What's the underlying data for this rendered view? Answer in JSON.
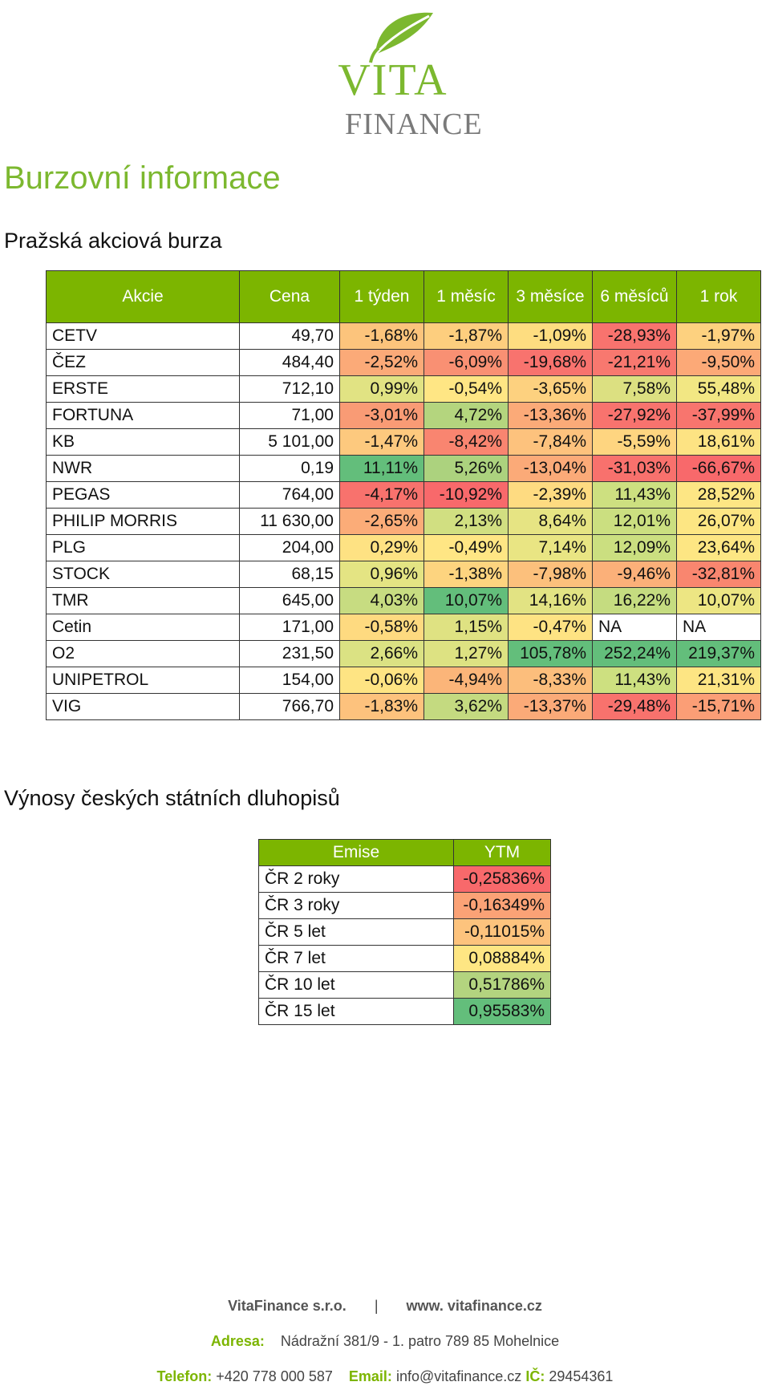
{
  "header": {
    "logo_top": "VITA",
    "logo_bottom": "FINANCE",
    "title": "Burzovní informace",
    "section1": "Pražská akciová burza",
    "section2": "Výnosy českých státních dluhopisů"
  },
  "stocks": {
    "headers": [
      "Akcie",
      "Cena",
      "1 týden",
      "1 měsíc",
      "3 měsíce",
      "6 měsíců",
      "1 rok"
    ],
    "rows": [
      {
        "name": "CETV",
        "price": "49,70",
        "vals": [
          "-1,68%",
          "-1,87%",
          "-1,09%",
          "-28,93%",
          "-1,97%"
        ],
        "colors": [
          "#fcc47c",
          "#fdce7e",
          "#fedd80",
          "#f8736e",
          "#fdd17f"
        ]
      },
      {
        "name": "ČEZ",
        "price": "484,40",
        "vals": [
          "-2,52%",
          "-6,09%",
          "-19,68%",
          "-21,21%",
          "-9,50%"
        ],
        "colors": [
          "#fbaa78",
          "#f99073",
          "#f8736e",
          "#f8786f",
          "#fca977"
        ]
      },
      {
        "name": "ERSTE",
        "price": "712,10",
        "vals": [
          "0,99%",
          "-0,54%",
          "-3,65%",
          "7,58%",
          "55,48%"
        ],
        "colors": [
          "#e1e383",
          "#ffe684",
          "#fdd17f",
          "#dce081",
          "#f2e783"
        ]
      },
      {
        "name": "FORTUNA",
        "price": "71,00",
        "vals": [
          "-3,01%",
          "4,72%",
          "-13,36%",
          "-27,92%",
          "-37,99%"
        ],
        "colors": [
          "#f99b75",
          "#b4d57e",
          "#fbaa78",
          "#f8736e",
          "#f8756e"
        ]
      },
      {
        "name": "KB",
        "price": "5 101,00",
        "vals": [
          "-1,47%",
          "-8,42%",
          "-7,84%",
          "-5,59%",
          "18,61%"
        ],
        "colors": [
          "#fdc97e",
          "#f98570",
          "#fdc27d",
          "#fed580",
          "#fde383"
        ]
      },
      {
        "name": "NWR",
        "price": "0,19",
        "vals": [
          "11,11%",
          "5,26%",
          "-13,04%",
          "-31,03%",
          "-66,67%"
        ],
        "colors": [
          "#63be7b",
          "#acd27e",
          "#fbaa78",
          "#f8716d",
          "#f8696b"
        ]
      },
      {
        "name": "PEGAS",
        "price": "764,00",
        "vals": [
          "-4,17%",
          "-10,92%",
          "-2,39%",
          "11,43%",
          "28,52%"
        ],
        "colors": [
          "#f8726d",
          "#f8696b",
          "#fedb81",
          "#cde080",
          "#fde684"
        ]
      },
      {
        "name": "PHILIP MORRIS",
        "price": "11 630,00",
        "vals": [
          "-2,65%",
          "2,13%",
          "8,64%",
          "12,01%",
          "26,07%"
        ],
        "colors": [
          "#fbac78",
          "#d1df81",
          "#e6e483",
          "#cbdf80",
          "#fde683"
        ]
      },
      {
        "name": "PLG",
        "price": "204,00",
        "vals": [
          "0,29%",
          "-0,49%",
          "7,14%",
          "12,09%",
          "23,64%"
        ],
        "colors": [
          "#fee283",
          "#ffe684",
          "#e9e583",
          "#cbdf80",
          "#fde683"
        ]
      },
      {
        "name": "STOCK",
        "price": "68,15",
        "vals": [
          "0,96%",
          "-1,38%",
          "-7,98%",
          "-9,46%",
          "-32,81%"
        ],
        "colors": [
          "#e4e483",
          "#fdd47f",
          "#fcc07c",
          "#fbb079",
          "#f9866f"
        ]
      },
      {
        "name": "TMR",
        "price": "645,00",
        "vals": [
          "4,03%",
          "10,07%",
          "14,16%",
          "16,22%",
          "10,07%"
        ],
        "colors": [
          "#c7dc81",
          "#63be7b",
          "#e2e383",
          "#c5dc80",
          "#ede683"
        ]
      },
      {
        "name": "Cetin",
        "price": "171,00",
        "vals": [
          "-0,58%",
          "1,15%",
          "-0,47%",
          "NA",
          "NA"
        ],
        "colors": [
          "#feda80",
          "#dfe282",
          "#fee383",
          "#ffffff",
          "#ffffff"
        ]
      },
      {
        "name": "O2",
        "price": "231,50",
        "vals": [
          "2,66%",
          "1,27%",
          "105,78%",
          "252,24%",
          "219,37%"
        ],
        "colors": [
          "#dbe283",
          "#dde282",
          "#63be7b",
          "#63be7b",
          "#63be7b"
        ]
      },
      {
        "name": "UNIPETROL",
        "price": "154,00",
        "vals": [
          "-0,06%",
          "-4,94%",
          "-8,33%",
          "11,43%",
          "21,31%"
        ],
        "colors": [
          "#fee483",
          "#fbb579",
          "#fcbe7c",
          "#cde080",
          "#fde583"
        ]
      },
      {
        "name": "VIG",
        "price": "766,70",
        "vals": [
          "-1,83%",
          "3,62%",
          "-13,37%",
          "-29,48%",
          "-15,71%"
        ],
        "colors": [
          "#fdc27d",
          "#c4da80",
          "#fbaa78",
          "#f8726d",
          "#fb9e76"
        ]
      }
    ]
  },
  "bonds": {
    "headers": [
      "Emise",
      "YTM"
    ],
    "rows": [
      {
        "name": "ČR 2 roky",
        "ytm": "-0,25836%",
        "color": "#f8696b"
      },
      {
        "name": "ČR 3 roky",
        "ytm": "-0,16349%",
        "color": "#fba276"
      },
      {
        "name": "ČR 5 let",
        "ytm": "-0,11015%",
        "color": "#fdc37d"
      },
      {
        "name": "ČR 7 let",
        "ytm": "0,08884%",
        "color": "#fee683"
      },
      {
        "name": "ČR 10 let",
        "ytm": "0,51786%",
        "color": "#b3d47f"
      },
      {
        "name": "ČR 15 let",
        "ytm": "0,95583%",
        "color": "#63be7b"
      }
    ]
  },
  "footer": {
    "company": "VitaFinance s.r.o.",
    "separator": "|",
    "web": "www. vitafinance.cz",
    "address_label": "Adresa:",
    "address": "Nádražní 381/9 - 1. patro 789 85 Mohelnice",
    "phone_label": "Telefon:",
    "phone": "+420 778 000 587",
    "email_label": "Email:",
    "email": "info@vitafinance.cz",
    "ic_label": "IČ:",
    "ic": "29454361"
  }
}
